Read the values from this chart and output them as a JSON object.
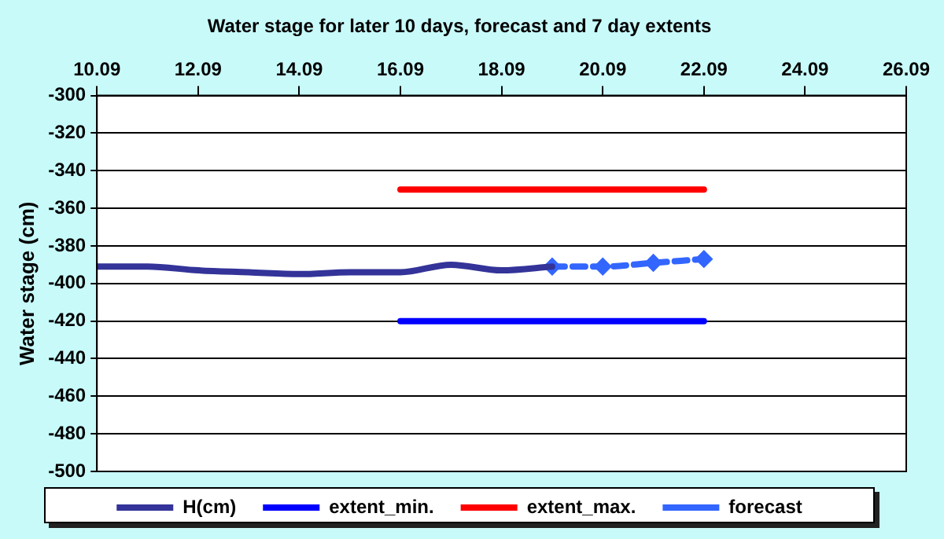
{
  "chart_data": {
    "type": "line",
    "title": "Water stage for later 10 days, forecast and 7 day extents",
    "ylabel": "Water stage (cm)",
    "series": [
      {
        "name": "H(cm)",
        "color": "#333399",
        "x": [
          "--09-10",
          "--09-11",
          "--09-12",
          "--09-13",
          "--09-14",
          "--09-15",
          "--09-16",
          "--09-17",
          "--09-18",
          "--09-19"
        ],
        "values": [
          -391,
          -391,
          -393,
          -394,
          -395,
          -394,
          -394,
          -390,
          -393,
          -391
        ],
        "line_style": "solid",
        "marker": "none"
      },
      {
        "name": "extent_min.",
        "color": "#0000ff",
        "x": [
          "--09-16",
          "--09-22"
        ],
        "values": [
          -420,
          -420
        ],
        "line_style": "solid",
        "marker": "none"
      },
      {
        "name": "extent_max.",
        "color": "#ff0000",
        "x": [
          "--09-16",
          "--09-22"
        ],
        "values": [
          -350,
          -350
        ],
        "line_style": "solid",
        "marker": "none"
      },
      {
        "name": "forecast",
        "color": "#3366ff",
        "x": [
          "--09-19",
          "--09-20",
          "--09-21",
          "--09-22"
        ],
        "values": [
          -391,
          -391,
          -389,
          -387
        ],
        "line_style": "dashed",
        "marker": "diamond"
      }
    ],
    "xlim": [
      "--09-10",
      "--09-26"
    ],
    "xticks": [
      {
        "value": "--09-10",
        "label": "10.09"
      },
      {
        "value": "--09-12",
        "label": "12.09"
      },
      {
        "value": "--09-14",
        "label": "14.09"
      },
      {
        "value": "--09-16",
        "label": "16.09"
      },
      {
        "value": "--09-18",
        "label": "18.09"
      },
      {
        "value": "--09-20",
        "label": "20.09"
      },
      {
        "value": "--09-22",
        "label": "22.09"
      },
      {
        "value": "--09-24",
        "label": "24.09"
      },
      {
        "value": "--09-26",
        "label": "26.09"
      }
    ],
    "ylim": [
      -500,
      -300
    ],
    "yticks": [
      -500,
      -480,
      -460,
      -440,
      -420,
      -400,
      -380,
      -360,
      -340,
      -320,
      -300
    ],
    "grid": "y",
    "legend": "bottom"
  }
}
